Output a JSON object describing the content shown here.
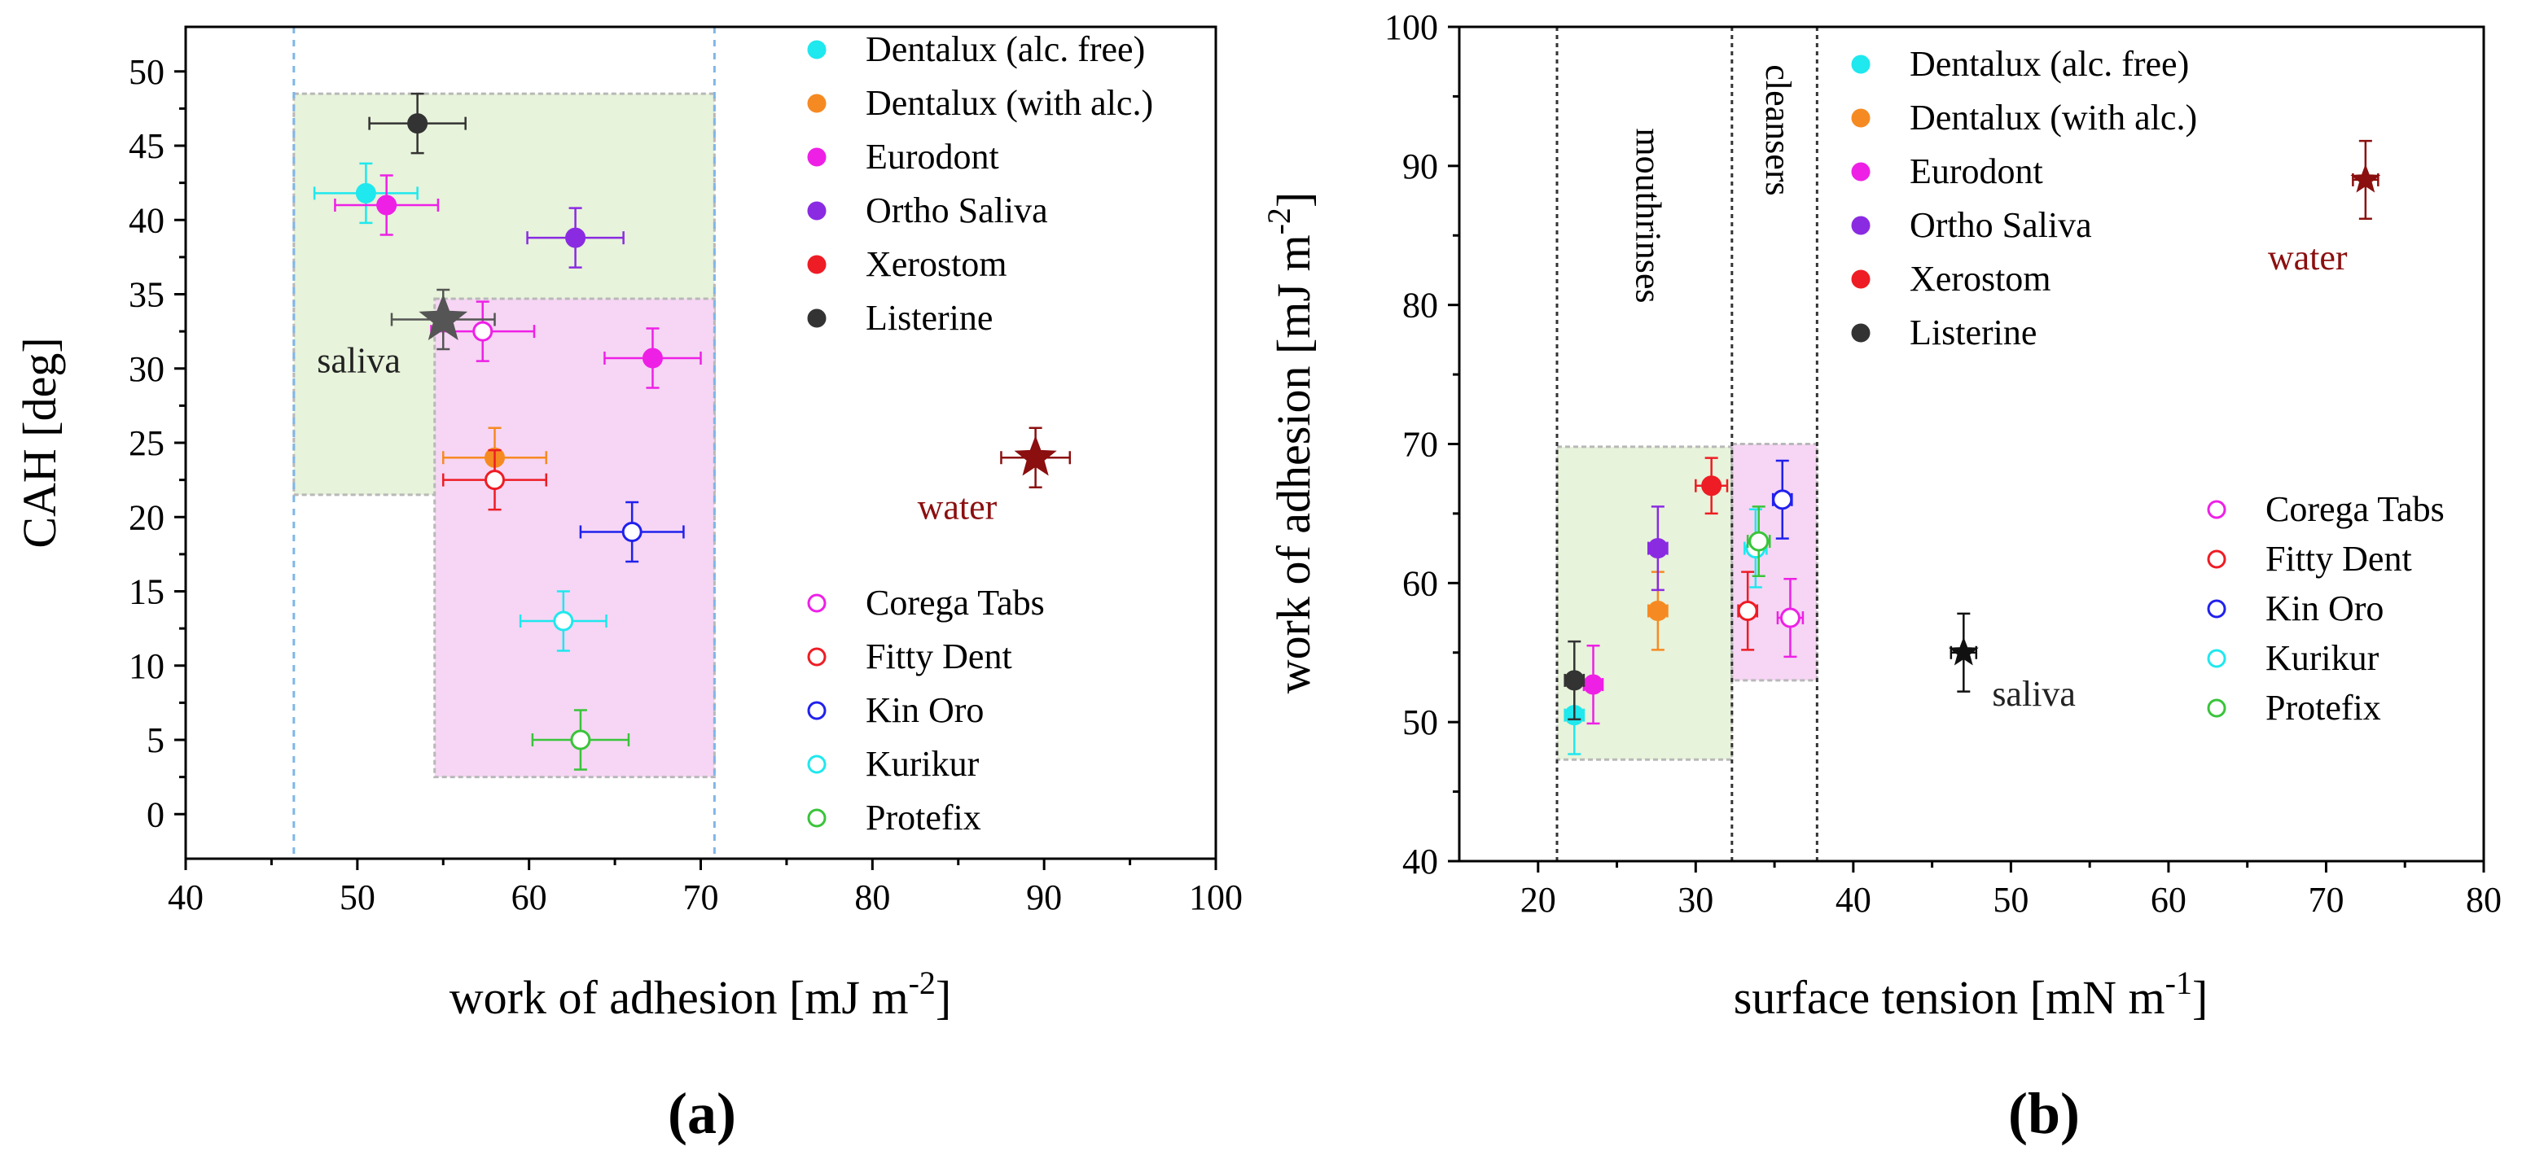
{
  "chart_data": [
    {
      "panel": "(a)",
      "type": "scatter",
      "xlabel": "work of adhesion [mJ m",
      "xlabel_sup": "-2",
      "xlabel_tail": "]",
      "ylabel": "CAH [deg]",
      "xlim": [
        40,
        100
      ],
      "ylim": [
        -3,
        53
      ],
      "xticks": [
        "40",
        "50",
        "60",
        "70",
        "80",
        "90",
        "100"
      ],
      "yticks": [
        "0",
        "5",
        "10",
        "15",
        "20",
        "25",
        "30",
        "35",
        "40",
        "45",
        "50"
      ],
      "vlines": [
        46.3,
        70.8
      ],
      "regions": [
        {
          "x": [
            46.3,
            70.8
          ],
          "y": [
            21.5,
            48.5
          ],
          "color": "#e7f3da"
        },
        {
          "x": [
            54.5,
            70.8
          ],
          "y": [
            2.5,
            34.7
          ],
          "color": "#f6d6f4"
        }
      ],
      "series": [
        {
          "name": "Dentalux (alc. free)",
          "color": "#1fe8ee",
          "filled": true,
          "points": [
            {
              "x": 50.5,
              "y": 41.8,
              "xerr": 3.0,
              "yerr": 2.0
            }
          ]
        },
        {
          "name": "Dentalux (with alc.)",
          "color": "#f68a22",
          "filled": true,
          "points": [
            {
              "x": 58.0,
              "y": 24.0,
              "xerr": 3.0,
              "yerr": 2.0
            }
          ]
        },
        {
          "name": "Eurodont",
          "color": "#ee20e6",
          "filled": true,
          "points": [
            {
              "x": 51.7,
              "y": 41.0,
              "xerr": 3.0,
              "yerr": 2.0
            },
            {
              "x": 67.2,
              "y": 30.7,
              "xerr": 2.8,
              "yerr": 2.0
            }
          ]
        },
        {
          "name": "Ortho Saliva",
          "color": "#8a2be2",
          "filled": true,
          "points": [
            {
              "x": 62.7,
              "y": 38.8,
              "xerr": 2.8,
              "yerr": 2.0
            }
          ]
        },
        {
          "name": "Xerostom",
          "color": "#ee1c24",
          "filled": true,
          "points": []
        },
        {
          "name": "Listerine",
          "color": "#333333",
          "filled": true,
          "points": [
            {
              "x": 53.5,
              "y": 46.5,
              "xerr": 2.8,
              "yerr": 2.0
            }
          ]
        },
        {
          "name": "Corega Tabs",
          "color": "#ee20e6",
          "filled": false,
          "points": [
            {
              "x": 57.3,
              "y": 32.5,
              "xerr": 3.0,
              "yerr": 2.0
            }
          ]
        },
        {
          "name": "Fitty Dent",
          "color": "#ee1c24",
          "filled": false,
          "points": [
            {
              "x": 58.0,
              "y": 22.5,
              "xerr": 3.0,
              "yerr": 2.0
            }
          ]
        },
        {
          "name": "Kin Oro",
          "color": "#2020ee",
          "filled": false,
          "points": [
            {
              "x": 66.0,
              "y": 19.0,
              "xerr": 3.0,
              "yerr": 2.0
            }
          ]
        },
        {
          "name": "Kurikur",
          "color": "#1fe8ee",
          "filled": false,
          "points": [
            {
              "x": 62.0,
              "y": 13.0,
              "xerr": 2.5,
              "yerr": 2.0
            }
          ]
        },
        {
          "name": "Protefix",
          "color": "#39c43a",
          "filled": false,
          "points": [
            {
              "x": 63.0,
              "y": 5.0,
              "xerr": 2.8,
              "yerr": 2.0
            }
          ]
        }
      ],
      "stars": [
        {
          "label": "saliva",
          "x": 55.0,
          "y": 33.3,
          "xerr": 3.0,
          "yerr": 2.0,
          "color": "#555555"
        },
        {
          "label": "water",
          "x": 89.5,
          "y": 24.0,
          "xerr": 2.0,
          "yerr": 2.0,
          "color": "#8b0f0f"
        }
      ]
    },
    {
      "panel": "(b)",
      "type": "scatter",
      "xlabel": "surface tension [mN m",
      "xlabel_sup": "-1",
      "xlabel_tail": "]",
      "ylabel": "work of adhesion [mJ m",
      "ylabel_sup": "-2",
      "ylabel_tail": "]",
      "xlim": [
        15,
        80
      ],
      "ylim": [
        40,
        100
      ],
      "xticks": [
        "20",
        "30",
        "40",
        "50",
        "60",
        "70",
        "80"
      ],
      "yticks": [
        "40",
        "50",
        "60",
        "70",
        "80",
        "90",
        "100"
      ],
      "vlines": [
        21.2,
        32.3,
        37.7
      ],
      "vline_labels": [
        "mouthrinses",
        "cleansers"
      ],
      "regions": [
        {
          "x": [
            21.2,
            32.3
          ],
          "y": [
            47.3,
            69.8
          ],
          "color": "#e7f3da"
        },
        {
          "x": [
            32.3,
            37.7
          ],
          "y": [
            53.0,
            70.0
          ],
          "color": "#f6d6f4"
        }
      ],
      "series": [
        {
          "name": "Dentalux (alc. free)",
          "color": "#1fe8ee",
          "filled": true,
          "points": [
            {
              "x": 22.3,
              "y": 50.5,
              "xerr": 0.6,
              "yerr": 2.8
            }
          ]
        },
        {
          "name": "Dentalux (with alc.)",
          "color": "#f68a22",
          "filled": true,
          "points": [
            {
              "x": 27.6,
              "y": 58.0,
              "xerr": 0.6,
              "yerr": 2.8
            }
          ]
        },
        {
          "name": "Eurodont",
          "color": "#ee20e6",
          "filled": true,
          "points": [
            {
              "x": 23.5,
              "y": 52.7,
              "xerr": 0.6,
              "yerr": 2.8
            }
          ]
        },
        {
          "name": "Ortho Saliva",
          "color": "#8a2be2",
          "filled": true,
          "points": [
            {
              "x": 27.6,
              "y": 62.5,
              "xerr": 0.6,
              "yerr": 3.0
            }
          ]
        },
        {
          "name": "Xerostom",
          "color": "#ee1c24",
          "filled": true,
          "points": [
            {
              "x": 31.0,
              "y": 67.0,
              "xerr": 1.0,
              "yerr": 2.0
            }
          ]
        },
        {
          "name": "Listerine",
          "color": "#333333",
          "filled": true,
          "points": [
            {
              "x": 22.3,
              "y": 53.0,
              "xerr": 0.6,
              "yerr": 2.8
            }
          ]
        },
        {
          "name": "Corega Tabs",
          "color": "#ee20e6",
          "filled": false,
          "points": [
            {
              "x": 36.0,
              "y": 57.5,
              "xerr": 0.8,
              "yerr": 2.8
            }
          ]
        },
        {
          "name": "Fitty Dent",
          "color": "#ee1c24",
          "filled": false,
          "points": [
            {
              "x": 33.3,
              "y": 58.0,
              "xerr": 0.6,
              "yerr": 2.8
            }
          ]
        },
        {
          "name": "Kin Oro",
          "color": "#2020ee",
          "filled": false,
          "points": [
            {
              "x": 35.5,
              "y": 66.0,
              "xerr": 0.6,
              "yerr": 2.8
            }
          ]
        },
        {
          "name": "Kurikur",
          "color": "#1fe8ee",
          "filled": false,
          "points": [
            {
              "x": 33.8,
              "y": 62.5,
              "xerr": 0.7,
              "yerr": 2.8
            }
          ]
        },
        {
          "name": "Protefix",
          "color": "#39c43a",
          "filled": false,
          "points": [
            {
              "x": 34.0,
              "y": 63.0,
              "xerr": 0.7,
              "yerr": 2.5
            }
          ]
        }
      ],
      "stars": [
        {
          "label": "saliva",
          "x": 47.0,
          "y": 55.0,
          "xerr": 0.8,
          "yerr": 2.8,
          "color": "#111111"
        },
        {
          "label": "water",
          "x": 72.5,
          "y": 89.0,
          "xerr": 0.8,
          "yerr": 2.8,
          "color": "#8b0f0f"
        }
      ]
    }
  ]
}
